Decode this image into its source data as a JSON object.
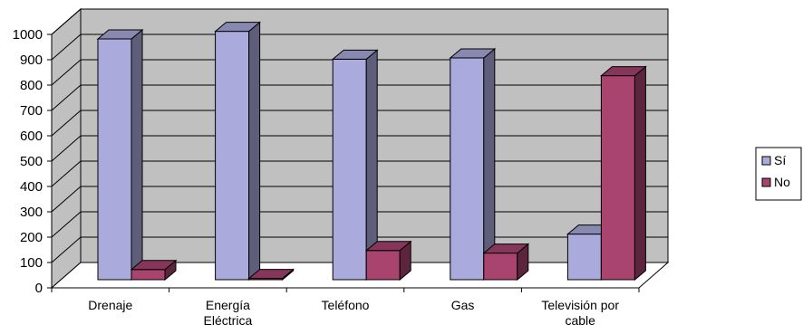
{
  "chart_data": {
    "type": "bar",
    "title": "",
    "xlabel": "",
    "ylabel": "",
    "categories": [
      "Drenaje",
      "Energía Eléctrica",
      "Teléfono",
      "Gas",
      "Televisión por cable"
    ],
    "category_lines": [
      [
        "Drenaje"
      ],
      [
        "Energía",
        "Eléctrica"
      ],
      [
        "Teléfono"
      ],
      [
        "Gas"
      ],
      [
        "Televisión por",
        "cable"
      ]
    ],
    "series": [
      {
        "name": "Sí",
        "values": [
          950,
          980,
          870,
          875,
          180
        ],
        "color": "#aaaadd"
      },
      {
        "name": "No",
        "values": [
          40,
          5,
          115,
          105,
          805
        ],
        "color": "#a8446e"
      }
    ],
    "ylim": [
      0,
      1000
    ],
    "yticks": [
      0,
      100,
      200,
      300,
      400,
      500,
      600,
      700,
      800,
      900,
      1000
    ],
    "grid": true,
    "legend_position": "right",
    "style": "3d-clustered-column",
    "colors": {
      "wall": "#c0c0c0",
      "floor": "#ffffff",
      "grid": "#000000"
    }
  }
}
